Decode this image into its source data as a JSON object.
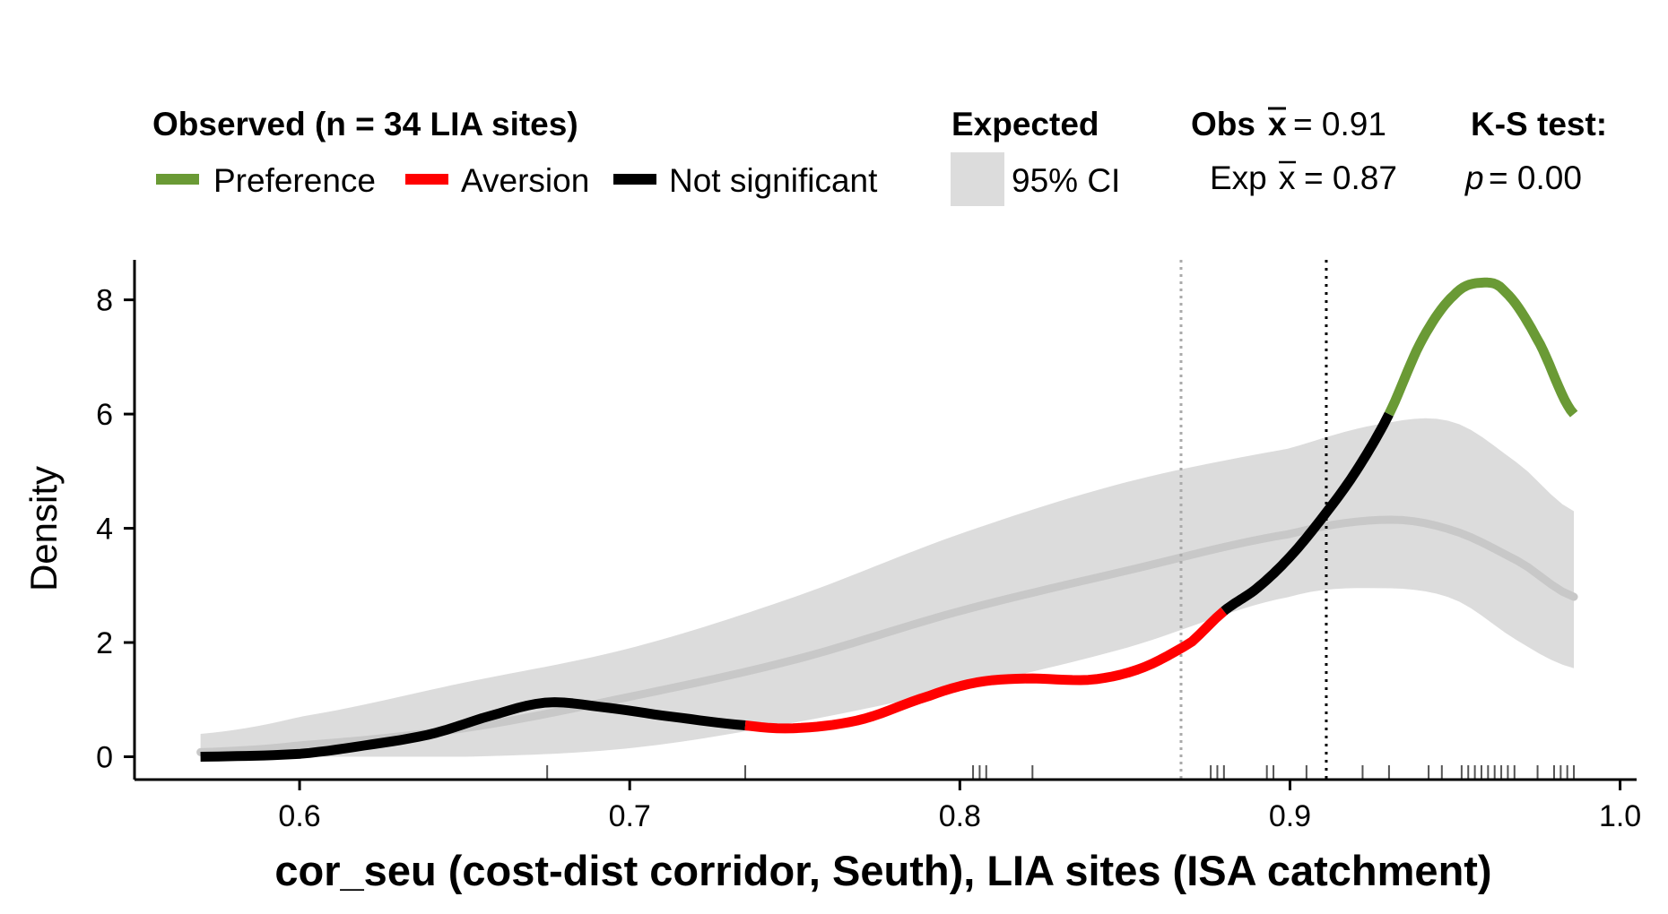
{
  "chart_data": {
    "type": "line",
    "xlabel": "cor_seu (cost-dist corridor, Seuth), LIA sites (ISA catchment)",
    "ylabel": "Density",
    "xlim": [
      0.55,
      1.005
    ],
    "ylim": [
      -0.4,
      8.7
    ],
    "x_ticks": [
      "0.6",
      "0.7",
      "0.8",
      "0.9",
      "1.0"
    ],
    "y_ticks": [
      "0",
      "2",
      "4",
      "6",
      "8"
    ],
    "grid": false,
    "legend_observed": {
      "title": "Observed (n = 34 LIA sites)",
      "items": [
        {
          "label": "Preference",
          "color": "#6a9a35"
        },
        {
          "label": "Aversion",
          "color": "#ff0000"
        },
        {
          "label": "Not significant",
          "color": "#000000"
        }
      ]
    },
    "legend_expected": {
      "title": "Expected",
      "item": "95% CI",
      "color": "#dcdcdc"
    },
    "stats": {
      "obs_prefix": "Obs",
      "obs_value": "= 0.91",
      "exp_prefix": "Exp",
      "exp_value": "= 0.87",
      "ks_title": "K-S test:",
      "ks_p": "p",
      "ks_value": "= 0.00"
    },
    "observed_mean": 0.911,
    "expected_mean": 0.867,
    "observed_curve": [
      {
        "x": 0.57,
        "y": 0.0
      },
      {
        "x": 0.6,
        "y": 0.05
      },
      {
        "x": 0.62,
        "y": 0.2
      },
      {
        "x": 0.64,
        "y": 0.4
      },
      {
        "x": 0.66,
        "y": 0.75
      },
      {
        "x": 0.675,
        "y": 0.95
      },
      {
        "x": 0.69,
        "y": 0.88
      },
      {
        "x": 0.71,
        "y": 0.72
      },
      {
        "x": 0.735,
        "y": 0.55
      },
      {
        "x": 0.75,
        "y": 0.5
      },
      {
        "x": 0.77,
        "y": 0.65
      },
      {
        "x": 0.79,
        "y": 1.05
      },
      {
        "x": 0.805,
        "y": 1.3
      },
      {
        "x": 0.82,
        "y": 1.37
      },
      {
        "x": 0.84,
        "y": 1.35
      },
      {
        "x": 0.855,
        "y": 1.55
      },
      {
        "x": 0.87,
        "y": 2.0
      },
      {
        "x": 0.88,
        "y": 2.55
      },
      {
        "x": 0.89,
        "y": 2.95
      },
      {
        "x": 0.9,
        "y": 3.5
      },
      {
        "x": 0.91,
        "y": 4.2
      },
      {
        "x": 0.92,
        "y": 5.0
      },
      {
        "x": 0.93,
        "y": 6.0
      },
      {
        "x": 0.94,
        "y": 7.3
      },
      {
        "x": 0.95,
        "y": 8.1
      },
      {
        "x": 0.958,
        "y": 8.3
      },
      {
        "x": 0.965,
        "y": 8.15
      },
      {
        "x": 0.975,
        "y": 7.3
      },
      {
        "x": 0.986,
        "y": 6.0
      }
    ],
    "significance_segments": [
      {
        "from": 0.57,
        "to": 0.735,
        "status": "Not significant"
      },
      {
        "from": 0.735,
        "to": 0.88,
        "status": "Aversion"
      },
      {
        "from": 0.88,
        "to": 0.93,
        "status": "Not significant"
      },
      {
        "from": 0.93,
        "to": 0.986,
        "status": "Preference"
      }
    ],
    "expected_curve": [
      {
        "x": 0.57,
        "y": 0.08,
        "lo": 0.0,
        "hi": 0.4
      },
      {
        "x": 0.6,
        "y": 0.2,
        "lo": 0.0,
        "hi": 0.7
      },
      {
        "x": 0.65,
        "y": 0.5,
        "lo": 0.0,
        "hi": 1.3
      },
      {
        "x": 0.7,
        "y": 1.05,
        "lo": 0.15,
        "hi": 1.9
      },
      {
        "x": 0.75,
        "y": 1.7,
        "lo": 0.6,
        "hi": 2.8
      },
      {
        "x": 0.8,
        "y": 2.55,
        "lo": 1.2,
        "hi": 3.9
      },
      {
        "x": 0.85,
        "y": 3.25,
        "lo": 1.9,
        "hi": 4.8
      },
      {
        "x": 0.9,
        "y": 3.9,
        "lo": 2.8,
        "hi": 5.4
      },
      {
        "x": 0.93,
        "y": 4.15,
        "lo": 2.95,
        "hi": 5.85
      },
      {
        "x": 0.95,
        "y": 3.95,
        "lo": 2.75,
        "hi": 5.85
      },
      {
        "x": 0.97,
        "y": 3.4,
        "lo": 2.0,
        "hi": 5.1
      },
      {
        "x": 0.986,
        "y": 2.8,
        "lo": 1.55,
        "hi": 4.3
      }
    ],
    "rug": [
      0.675,
      0.735,
      0.804,
      0.806,
      0.808,
      0.822,
      0.876,
      0.878,
      0.88,
      0.893,
      0.895,
      0.905,
      0.922,
      0.93,
      0.942,
      0.946,
      0.952,
      0.954,
      0.956,
      0.958,
      0.96,
      0.962,
      0.964,
      0.966,
      0.968,
      0.975,
      0.98,
      0.982,
      0.984,
      0.986
    ]
  }
}
